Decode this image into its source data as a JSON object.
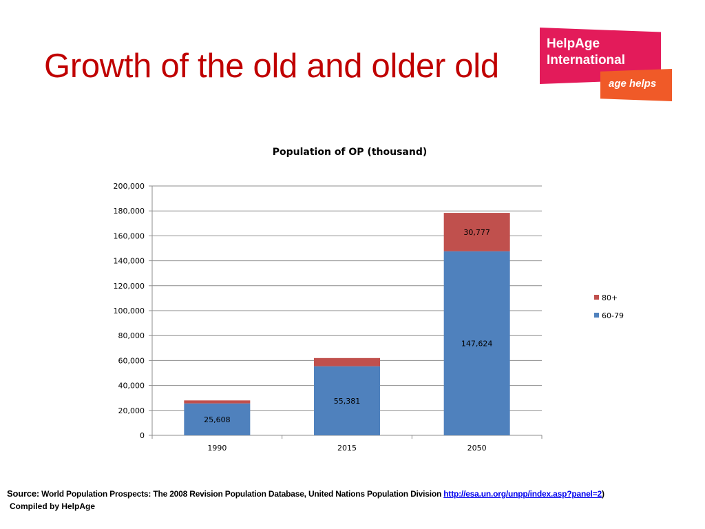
{
  "slide": {
    "title": "Growth of the old and older old"
  },
  "logo": {
    "line1": "HelpAge",
    "line2": "International",
    "tagline": "age helps"
  },
  "chart_data": {
    "type": "bar",
    "stacked": true,
    "title": "Population of OP (thousand)",
    "categories": [
      "1990",
      "2015",
      "2050"
    ],
    "series": [
      {
        "name": "60-79",
        "values": [
          25608,
          55381,
          147624
        ],
        "labels": [
          "25,608",
          "55,381",
          "147,624"
        ],
        "color": "#4f81bd"
      },
      {
        "name": "80+",
        "values": [
          2400,
          6600,
          30777
        ],
        "labels": [
          "",
          "",
          "30,777"
        ],
        "color": "#c0504d"
      }
    ],
    "ylim": [
      0,
      200000
    ],
    "yticks": [
      0,
      20000,
      40000,
      60000,
      80000,
      100000,
      120000,
      140000,
      160000,
      180000,
      200000
    ],
    "ytick_labels": [
      "0",
      "20,000",
      "40,000",
      "60,000",
      "80,000",
      "100,000",
      "120,000",
      "140,000",
      "160,000",
      "180,000",
      "200,000"
    ],
    "grid": true,
    "legend_position": "right",
    "legend_order": [
      "80+",
      "60-79"
    ]
  },
  "source": {
    "label": "Source:",
    "text": " World Population Prospects: The 2008 Revision Population Database, United Nations Population Division ",
    "link_text": "http://esa.un.org/unpp/index.asp?panel=2",
    "close": ")",
    "compiled": "Compiled by HelpAge"
  }
}
